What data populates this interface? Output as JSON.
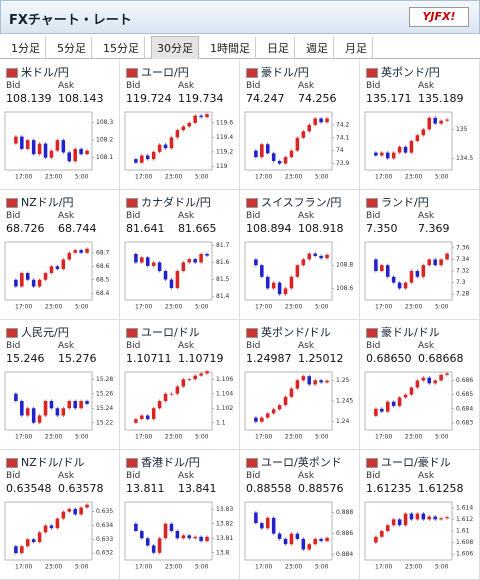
{
  "header": {
    "title": "FXチャート・レート",
    "logo": "YJFX!"
  },
  "tabs": {
    "labels": [
      "1分足",
      "5分足",
      "15分足",
      "30分足",
      "1時間足",
      "日足",
      "週足",
      "月足"
    ],
    "selected": 3
  },
  "labels": {
    "bid": "Bid",
    "ask": "Ask"
  },
  "times": [
    "17:00",
    "23:00",
    "5:00"
  ],
  "pairs": [
    {
      "name": "米ドル/円",
      "bid": "108.139",
      "ask": "108.143",
      "ylim": [
        108.03,
        108.36
      ],
      "yticks": [
        108.1,
        108.2,
        108.3
      ],
      "closes": [
        108.18,
        108.22,
        108.15,
        108.2,
        108.12,
        108.18,
        108.1,
        108.14,
        108.2,
        108.13,
        108.08,
        108.15,
        108.12,
        108.14
      ]
    },
    {
      "name": "ユーロ/円",
      "bid": "119.724",
      "ask": "119.734",
      "ylim": [
        118.95,
        119.75
      ],
      "yticks": [
        119,
        119.2,
        119.4,
        119.6
      ],
      "closes": [
        119.1,
        119.05,
        119.15,
        119.1,
        119.2,
        119.3,
        119.25,
        119.4,
        119.5,
        119.55,
        119.6,
        119.7,
        119.68,
        119.72
      ]
    },
    {
      "name": "豪ドル/円",
      "bid": "74.247",
      "ask": "74.256",
      "ylim": [
        73.85,
        74.3
      ],
      "yticks": [
        73.9,
        74,
        74.1,
        74.2
      ],
      "closes": [
        74.0,
        73.95,
        74.05,
        73.98,
        73.92,
        73.9,
        73.95,
        74.0,
        74.1,
        74.15,
        74.2,
        74.25,
        74.22,
        74.25
      ]
    },
    {
      "name": "英ポンド/円",
      "bid": "135.171",
      "ask": "135.189",
      "ylim": [
        134.3,
        135.3
      ],
      "yticks": [
        134.5,
        135
      ],
      "closes": [
        134.6,
        134.55,
        134.6,
        134.5,
        134.6,
        134.7,
        134.6,
        134.8,
        134.9,
        135.0,
        135.2,
        135.1,
        135.15,
        135.17
      ]
    },
    {
      "name": "NZドル/円",
      "bid": "68.726",
      "ask": "68.744",
      "ylim": [
        68.35,
        68.78
      ],
      "yticks": [
        68.4,
        68.5,
        68.6,
        68.7
      ],
      "closes": [
        68.5,
        68.45,
        68.55,
        68.5,
        68.45,
        68.5,
        68.55,
        68.6,
        68.58,
        68.65,
        68.7,
        68.72,
        68.7,
        68.73
      ]
    },
    {
      "name": "カナダドル/円",
      "bid": "81.641",
      "ask": "81.665",
      "ylim": [
        81.38,
        81.72
      ],
      "yticks": [
        81.4,
        81.5,
        81.6,
        81.7
      ],
      "closes": [
        81.65,
        81.6,
        81.63,
        81.58,
        81.6,
        81.55,
        81.5,
        81.45,
        81.55,
        81.6,
        81.62,
        81.6,
        81.65,
        81.64
      ]
    },
    {
      "name": "スイスフラン/円",
      "bid": "108.894",
      "ask": "108.918",
      "ylim": [
        108.5,
        109.0
      ],
      "yticks": [
        108.6,
        108.8
      ],
      "closes": [
        108.85,
        108.8,
        108.7,
        108.6,
        108.65,
        108.55,
        108.6,
        108.7,
        108.8,
        108.85,
        108.9,
        108.88,
        108.86,
        108.89
      ]
    },
    {
      "name": "ランド/円",
      "bid": "7.350",
      "ask": "7.369",
      "ylim": [
        7.27,
        7.37
      ],
      "yticks": [
        7.28,
        7.3,
        7.32,
        7.34,
        7.36
      ],
      "closes": [
        7.34,
        7.32,
        7.33,
        7.31,
        7.3,
        7.29,
        7.3,
        7.32,
        7.31,
        7.33,
        7.34,
        7.33,
        7.34,
        7.35
      ]
    },
    {
      "name": "人民元/円",
      "bid": "15.246",
      "ask": "15.276",
      "ylim": [
        15.21,
        15.29
      ],
      "yticks": [
        15.22,
        15.24,
        15.26,
        15.28
      ],
      "closes": [
        15.26,
        15.25,
        15.23,
        15.24,
        15.22,
        15.23,
        15.25,
        15.24,
        15.23,
        15.24,
        15.25,
        15.24,
        15.25,
        15.246
      ]
    },
    {
      "name": "ユーロ/ドル",
      "bid": "1.10711",
      "ask": "1.10719",
      "ylim": [
        1.099,
        1.107
      ],
      "yticks": [
        1.1,
        1.102,
        1.104,
        1.106
      ],
      "closes": [
        1.1,
        1.1005,
        1.101,
        1.1005,
        1.102,
        1.103,
        1.104,
        1.104,
        1.105,
        1.106,
        1.106,
        1.1065,
        1.1068,
        1.1071
      ]
    },
    {
      "name": "英ポンド/ドル",
      "bid": "1.24987",
      "ask": "1.25012",
      "ylim": [
        1.238,
        1.252
      ],
      "yticks": [
        1.24,
        1.245,
        1.25
      ],
      "closes": [
        1.241,
        1.24,
        1.241,
        1.242,
        1.243,
        1.244,
        1.246,
        1.248,
        1.25,
        1.251,
        1.249,
        1.25,
        1.2495,
        1.2499
      ]
    },
    {
      "name": "豪ドル/ドル",
      "bid": "0.68650",
      "ask": "0.68668",
      "ylim": [
        0.6825,
        0.6866
      ],
      "yticks": [
        0.683,
        0.684,
        0.685,
        0.686
      ],
      "closes": [
        0.6835,
        0.684,
        0.6838,
        0.6845,
        0.6842,
        0.6848,
        0.685,
        0.6855,
        0.686,
        0.6862,
        0.6858,
        0.686,
        0.6864,
        0.6865
      ]
    },
    {
      "name": "NZドル/ドル",
      "bid": "0.63548",
      "ask": "0.63578",
      "ylim": [
        0.6315,
        0.6357
      ],
      "yticks": [
        0.632,
        0.633,
        0.634,
        0.635
      ],
      "closes": [
        0.6325,
        0.632,
        0.6325,
        0.633,
        0.6328,
        0.6335,
        0.634,
        0.6338,
        0.6345,
        0.635,
        0.6352,
        0.6348,
        0.6353,
        0.6355
      ]
    },
    {
      "name": "香港ドル/円",
      "bid": "13.811",
      "ask": "13.841",
      "ylim": [
        13.795,
        13.835
      ],
      "yticks": [
        13.8,
        13.81,
        13.82,
        13.83
      ],
      "closes": [
        13.82,
        13.815,
        13.81,
        13.805,
        13.8,
        13.81,
        13.82,
        13.815,
        13.81,
        13.812,
        13.81,
        13.811,
        13.808,
        13.811
      ]
    },
    {
      "name": "ユーロ/英ポンド",
      "bid": "0.88558",
      "ask": "0.88576",
      "ylim": [
        0.8835,
        0.889
      ],
      "yticks": [
        0.884,
        0.886,
        0.888
      ],
      "closes": [
        0.888,
        0.887,
        0.8865,
        0.8875,
        0.886,
        0.8855,
        0.885,
        0.886,
        0.8855,
        0.8845,
        0.885,
        0.8855,
        0.8853,
        0.8856
      ]
    },
    {
      "name": "ユーロ/豪ドル",
      "bid": "1.61235",
      "ask": "1.61258",
      "ylim": [
        1.605,
        1.615
      ],
      "yticks": [
        1.606,
        1.608,
        1.61,
        1.612,
        1.614
      ],
      "closes": [
        1.608,
        1.609,
        1.61,
        1.611,
        1.612,
        1.611,
        1.613,
        1.612,
        1.613,
        1.612,
        1.6125,
        1.612,
        1.6122,
        1.6124
      ]
    }
  ]
}
